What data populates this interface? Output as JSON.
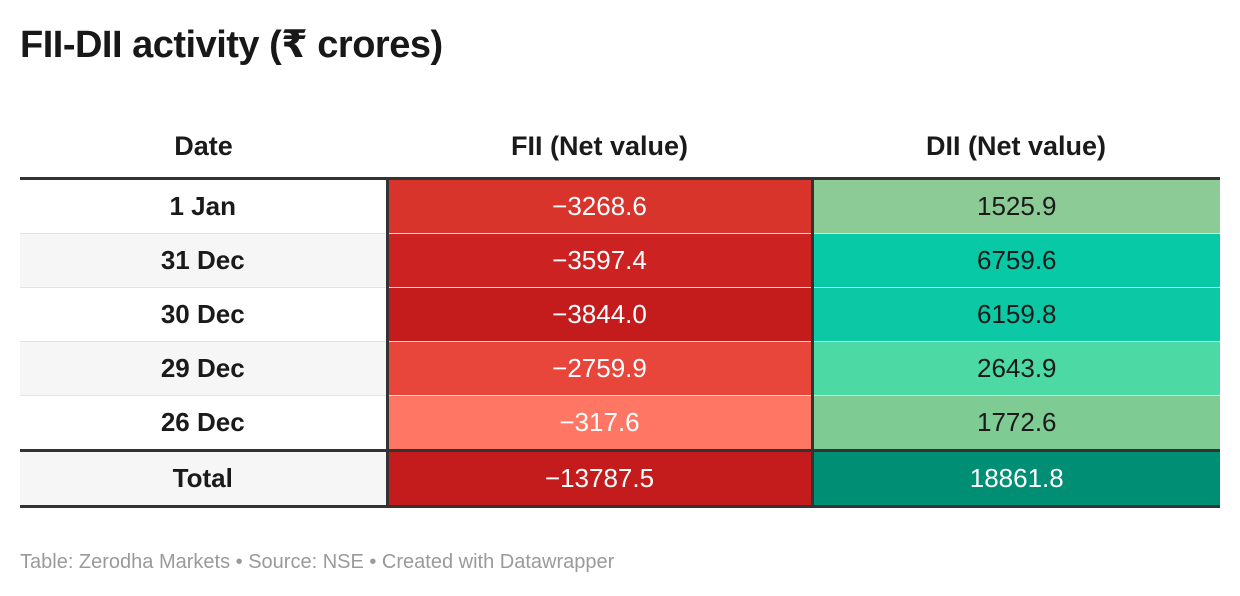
{
  "title": "FII-DII activity (₹ crores)",
  "footer": "Table: Zerodha Markets • Source: NSE • Created with Datawrapper",
  "chart_data": {
    "type": "table",
    "title": "FII-DII activity (₹ crores)",
    "columns": [
      "Date",
      "FII (Net value)",
      "DII (Net value)"
    ],
    "rows": [
      {
        "date": "1 Jan",
        "fii": "−3268.6",
        "dii": "1525.9",
        "fii_color": "#d9342b",
        "dii_color": "#8ccb95"
      },
      {
        "date": "31 Dec",
        "fii": "−3597.4",
        "dii": "6759.6",
        "fii_color": "#cd2222",
        "dii_color": "#07c9a6"
      },
      {
        "date": "30 Dec",
        "fii": "−3844.0",
        "dii": "6159.8",
        "fii_color": "#c41c1c",
        "dii_color": "#0cc8a4"
      },
      {
        "date": "29 Dec",
        "fii": "−2759.9",
        "dii": "2643.9",
        "fii_color": "#e8453b",
        "dii_color": "#4cd9a4"
      },
      {
        "date": "26 Dec",
        "fii": "−317.6",
        "dii": "1772.6",
        "fii_color": "#ff7764",
        "dii_color": "#7ecb94"
      }
    ],
    "total": {
      "date": "Total",
      "fii": "−13787.5",
      "dii": "18861.8",
      "fii_color": "#c41c1c",
      "dii_color": "#008f75"
    }
  }
}
